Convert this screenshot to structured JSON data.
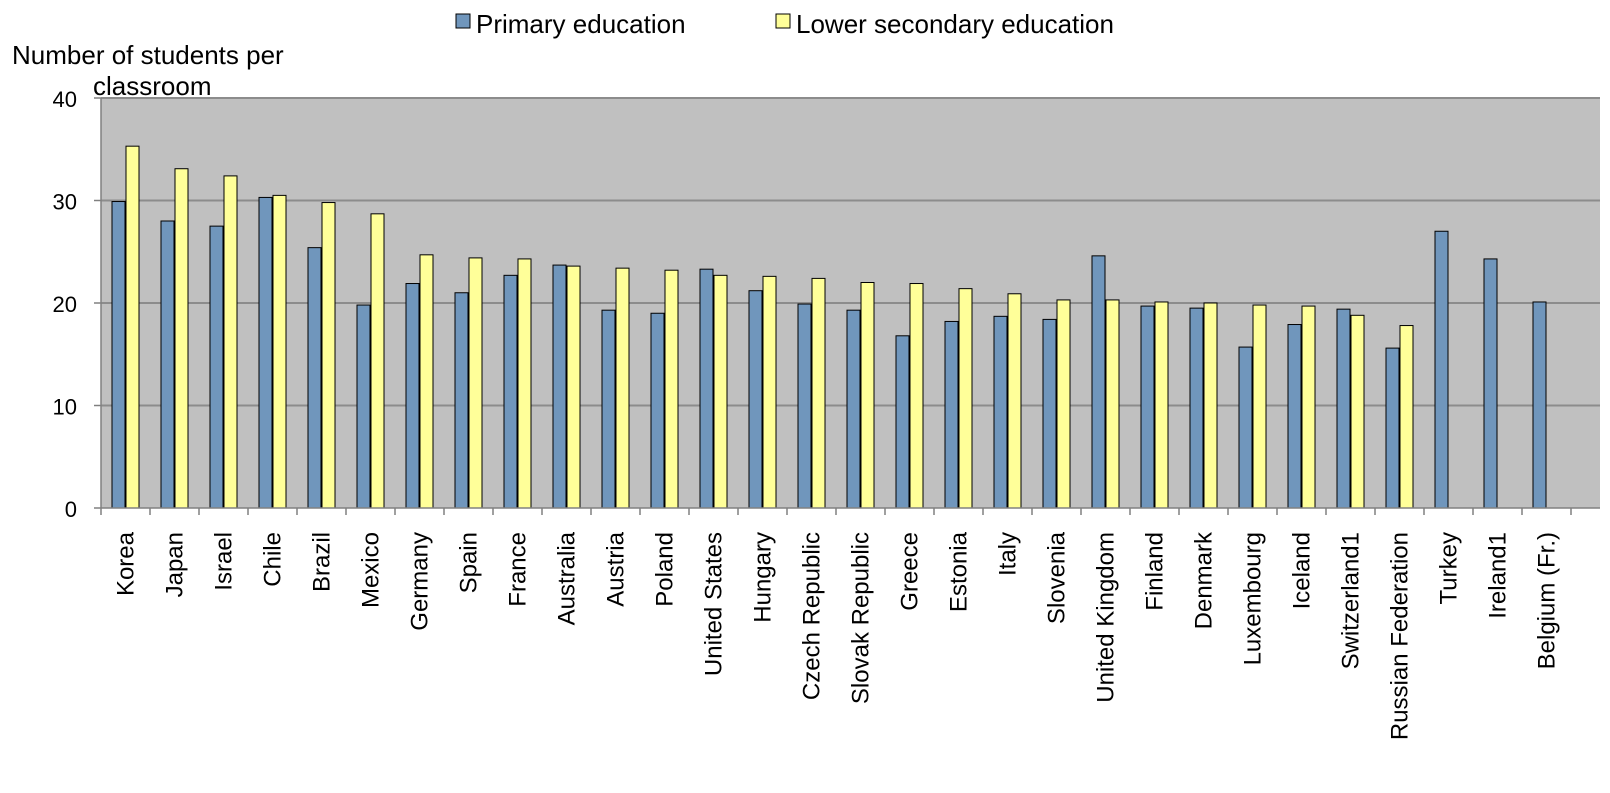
{
  "chart_data": {
    "type": "bar",
    "title": "",
    "xlabel": "",
    "ylabel": "Number of students per classroom",
    "ylim": [
      0,
      40
    ],
    "yticks": [
      0,
      10,
      20,
      30,
      40
    ],
    "grid": true,
    "legend_position": "top-center",
    "categories": [
      "Korea",
      "Japan",
      "Israel",
      "Chile",
      "Brazil",
      "Mexico",
      "Germany",
      "Spain",
      "France",
      "Australia",
      "Austria",
      "Poland",
      "United States",
      "Hungary",
      "Czech Republic",
      "Slovak Republic",
      "Greece",
      "Estonia",
      "Italy",
      "Slovenia",
      "United Kingdom",
      "Finland",
      "Denmark",
      "Luxembourg",
      "Iceland",
      "Switzerland1",
      "Russian Federation",
      "Turkey",
      "Ireland1",
      "Belgium (Fr.)"
    ],
    "series": [
      {
        "name": "Primary education",
        "color": "#7096bc",
        "values": [
          29.9,
          28.0,
          27.5,
          30.3,
          25.4,
          19.8,
          21.9,
          21.0,
          22.7,
          23.7,
          19.3,
          19.0,
          23.3,
          21.2,
          19.9,
          19.3,
          16.8,
          18.2,
          18.7,
          18.4,
          24.6,
          19.7,
          19.5,
          15.7,
          17.9,
          19.4,
          15.6,
          27.0,
          24.3,
          20.1
        ]
      },
      {
        "name": "Lower secondary education",
        "color": "#ffff99",
        "values": [
          35.3,
          33.1,
          32.4,
          30.5,
          29.8,
          28.7,
          24.7,
          24.4,
          24.3,
          23.6,
          23.4,
          23.2,
          22.7,
          22.6,
          22.4,
          22.0,
          21.9,
          21.4,
          20.9,
          20.3,
          20.3,
          20.1,
          20.0,
          19.8,
          19.7,
          18.8,
          17.8,
          null,
          null,
          null
        ]
      }
    ],
    "plot_background": "#c0c0c0",
    "gridline_color": "#8c8c8c",
    "bar_outline_color": "#000000"
  }
}
